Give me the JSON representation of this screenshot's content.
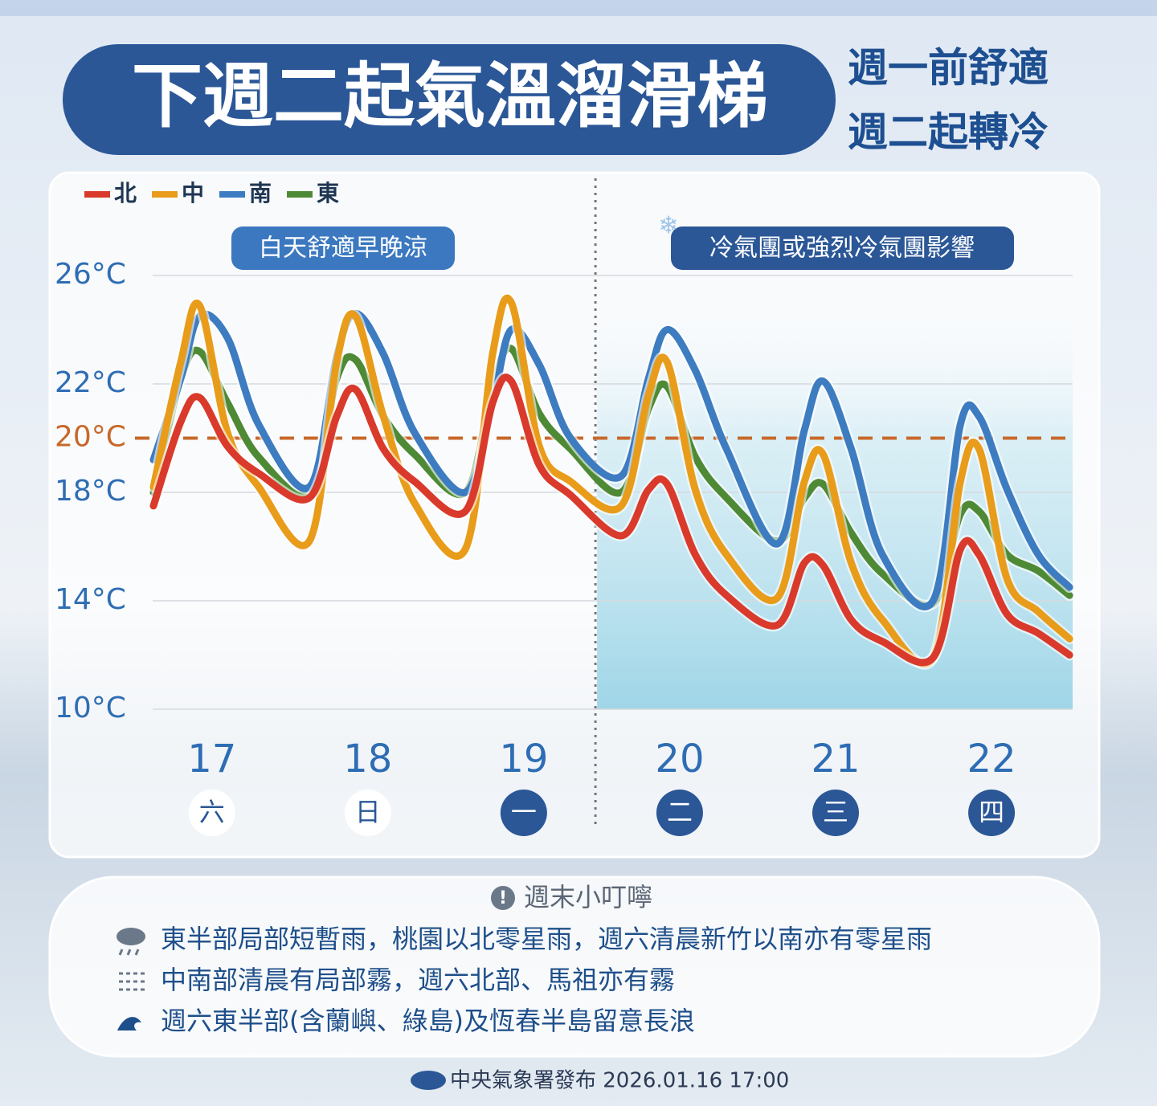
{
  "header": {
    "title": "下週二起氣溫溜滑梯",
    "subtitle_lines": [
      "週一前舒適",
      "週二起轉冷"
    ]
  },
  "chart_data": {
    "type": "line",
    "legend_position": "top-left",
    "grid": true,
    "annotations": [
      "白天舒適早晚涼",
      "冷氣團或強烈冷氣團影響"
    ],
    "shaded_region": {
      "from": 19.47,
      "color": "#9fd6e8"
    },
    "x": [
      16.625,
      16.8,
      16.92,
      17.1,
      17.3,
      17.625,
      17.8,
      17.92,
      18.1,
      18.3,
      18.625,
      18.8,
      18.92,
      19.1,
      19.3,
      19.625,
      19.8,
      19.92,
      20.1,
      20.3,
      20.625,
      20.8,
      20.92,
      21.1,
      21.3,
      21.625,
      21.8,
      21.92,
      22.1,
      22.3,
      22.5
    ],
    "xlim": [
      16.62,
      22.52
    ],
    "xticks": [
      17,
      18,
      19,
      20,
      21,
      22
    ],
    "weekdays": [
      {
        "label": "六",
        "filled": false
      },
      {
        "label": "日",
        "filled": false
      },
      {
        "label": "一",
        "filled": true
      },
      {
        "label": "二",
        "filled": true
      },
      {
        "label": "三",
        "filled": true
      },
      {
        "label": "四",
        "filled": true
      }
    ],
    "ylim": [
      10,
      26
    ],
    "yticks": [
      {
        "value": 10,
        "label": "10°C"
      },
      {
        "value": 14,
        "label": "14°C"
      },
      {
        "value": 18,
        "label": "18°C"
      },
      {
        "value": 20,
        "label": "20°C",
        "style": "dashed",
        "color": "#c8682a"
      },
      {
        "value": 22,
        "label": "22°C"
      },
      {
        "value": 26,
        "label": "26°C"
      }
    ],
    "series": [
      {
        "name": "北",
        "color": "#d93a2b",
        "values": [
          17.5,
          20.6,
          21.5,
          19.7,
          18.7,
          17.8,
          20.8,
          21.8,
          19.6,
          18.4,
          17.3,
          21.3,
          22.1,
          19.0,
          17.9,
          16.4,
          18.1,
          18.3,
          15.7,
          14.2,
          13.1,
          15.4,
          15.3,
          13.3,
          12.5,
          11.9,
          15.9,
          15.7,
          13.5,
          12.8,
          12.0
        ]
      },
      {
        "name": "中",
        "color": "#e89c1a",
        "values": [
          18.2,
          22.8,
          24.9,
          20.2,
          18.2,
          16.2,
          22.8,
          24.5,
          20.8,
          17.6,
          15.9,
          23.1,
          25.0,
          19.7,
          18.4,
          17.5,
          21.6,
          22.8,
          18.1,
          15.7,
          14.1,
          18.4,
          19.4,
          15.4,
          13.3,
          11.9,
          18.4,
          19.6,
          14.8,
          13.6,
          12.6
        ]
      },
      {
        "name": "南",
        "color": "#3d7cc0",
        "values": [
          19.2,
          22.2,
          24.5,
          23.7,
          20.5,
          18.2,
          23.0,
          24.6,
          23.1,
          20.2,
          18.0,
          21.3,
          24.0,
          22.7,
          20.0,
          18.6,
          22.2,
          24.0,
          22.5,
          19.6,
          16.1,
          20.3,
          22.1,
          19.6,
          15.7,
          14.0,
          20.5,
          20.8,
          18.1,
          15.7,
          14.5
        ]
      },
      {
        "name": "東",
        "color": "#4e8a35",
        "values": [
          18.0,
          22.2,
          23.2,
          21.3,
          19.3,
          18.0,
          22.2,
          22.9,
          20.8,
          19.4,
          18.0,
          21.9,
          23.3,
          20.9,
          19.6,
          18.0,
          21.1,
          21.9,
          19.3,
          17.8,
          16.2,
          17.8,
          18.3,
          16.5,
          15.0,
          13.9,
          17.2,
          17.3,
          15.7,
          15.1,
          14.2
        ]
      }
    ]
  },
  "notice": {
    "title": "週末小叮嚀",
    "items": [
      "東半部局部短暫雨，桃園以北零星雨，週六清晨新竹以南亦有零星雨",
      "中南部清晨有局部霧，週六北部、馬祖亦有霧",
      "週六東半部(含蘭嶼、綠島)及恆春半島留意長浪"
    ]
  },
  "footer": "中央氣象署發布 2026.01.16 17:00"
}
